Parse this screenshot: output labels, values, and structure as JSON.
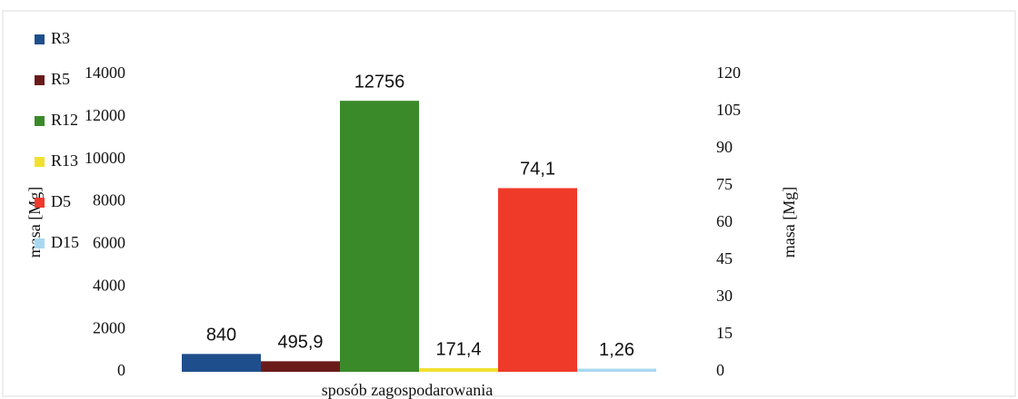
{
  "chart_data": {
    "type": "bar",
    "x_label": "sposób zagospodarowania",
    "y_label": "masa [Mg]",
    "y2_label": "masa [Mg]",
    "ylim": [
      0,
      14000
    ],
    "yticks": [
      0,
      2000,
      4000,
      6000,
      8000,
      10000,
      12000,
      14000
    ],
    "y2lim": [
      0,
      120
    ],
    "y2ticks": [
      0,
      15,
      30,
      45,
      60,
      75,
      90,
      105,
      120
    ],
    "legend": "left",
    "series": [
      {
        "name": "R3",
        "color": "#1f4e8c",
        "values": [
          840
        ]
      },
      {
        "name": "R5",
        "color": "#6b1a1a",
        "values": [
          495.9
        ],
        "value_labels": [
          "495,9"
        ]
      },
      {
        "name": "R12",
        "color": "#3a8a2a",
        "values": [
          12756
        ]
      },
      {
        "name": "R13",
        "color": "#f2e030",
        "values": [
          171.4
        ],
        "value_labels": [
          "171,4"
        ]
      },
      {
        "name": "D5",
        "color": "#ef3a2a",
        "values": [
          74.1
        ],
        "value_labels": [
          "74,1"
        ],
        "axis": "y2"
      },
      {
        "name": "D15",
        "color": "#a8d8f0",
        "values": [
          1.26
        ],
        "value_labels": [
          "1,26"
        ],
        "axis": "y2"
      }
    ]
  }
}
